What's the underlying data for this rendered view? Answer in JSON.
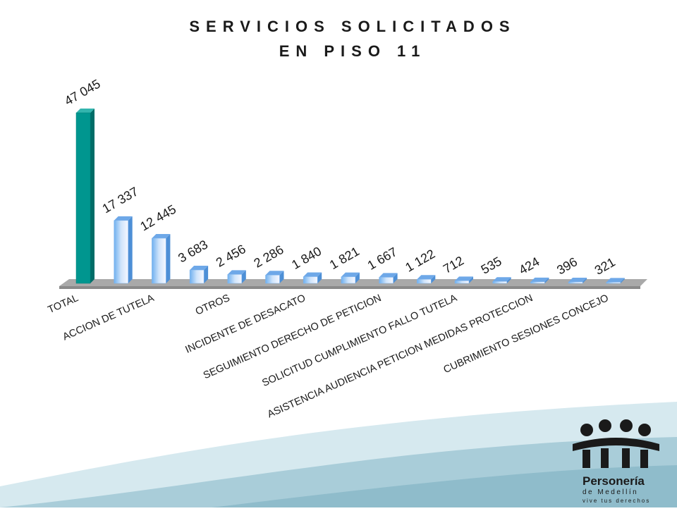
{
  "chart_data": {
    "type": "bar",
    "title": "SERVICIOS SOLICITADOS",
    "subtitle": "EN PISO 11",
    "categories": [
      "TOTAL",
      null,
      "ACCION DE TUTELA",
      null,
      "OTROS",
      null,
      "INCIDENTE DE DESACATO",
      null,
      "SEGUIMIENTO DERECHO DE PETICION",
      null,
      "SOLICITUD CUMPLIMIENTO FALLO TUTELA",
      null,
      "ASISTENCIA  AUDIENCIA PETICION MEDIDAS  PROTECCION",
      null,
      "CUBRIMIENTO SESIONES CONCEJO"
    ],
    "values": [
      47045,
      17337,
      12445,
      3683,
      2456,
      2286,
      1840,
      1821,
      1667,
      1122,
      712,
      535,
      424,
      396,
      321
    ],
    "value_labels": [
      "47 045",
      "17 337",
      "12 445",
      "3 683",
      "2 456",
      "2 286",
      "1 840",
      "1 821",
      "1 667",
      "1 122",
      "712",
      "535",
      "424",
      "396",
      "321"
    ],
    "colors": [
      "#00968f",
      "#a9d0f5",
      "#a9d0f5",
      "#a9d0f5",
      "#a9d0f5",
      "#a9d0f5",
      "#a9d0f5",
      "#a9d0f5",
      "#a9d0f5",
      "#a9d0f5",
      "#a9d0f5",
      "#a9d0f5",
      "#a9d0f5",
      "#a9d0f5",
      "#a9d0f5"
    ],
    "grid": false
  },
  "logo": {
    "name": "Personería",
    "city": "de Medellín",
    "slogan": "vive tus derechos"
  }
}
